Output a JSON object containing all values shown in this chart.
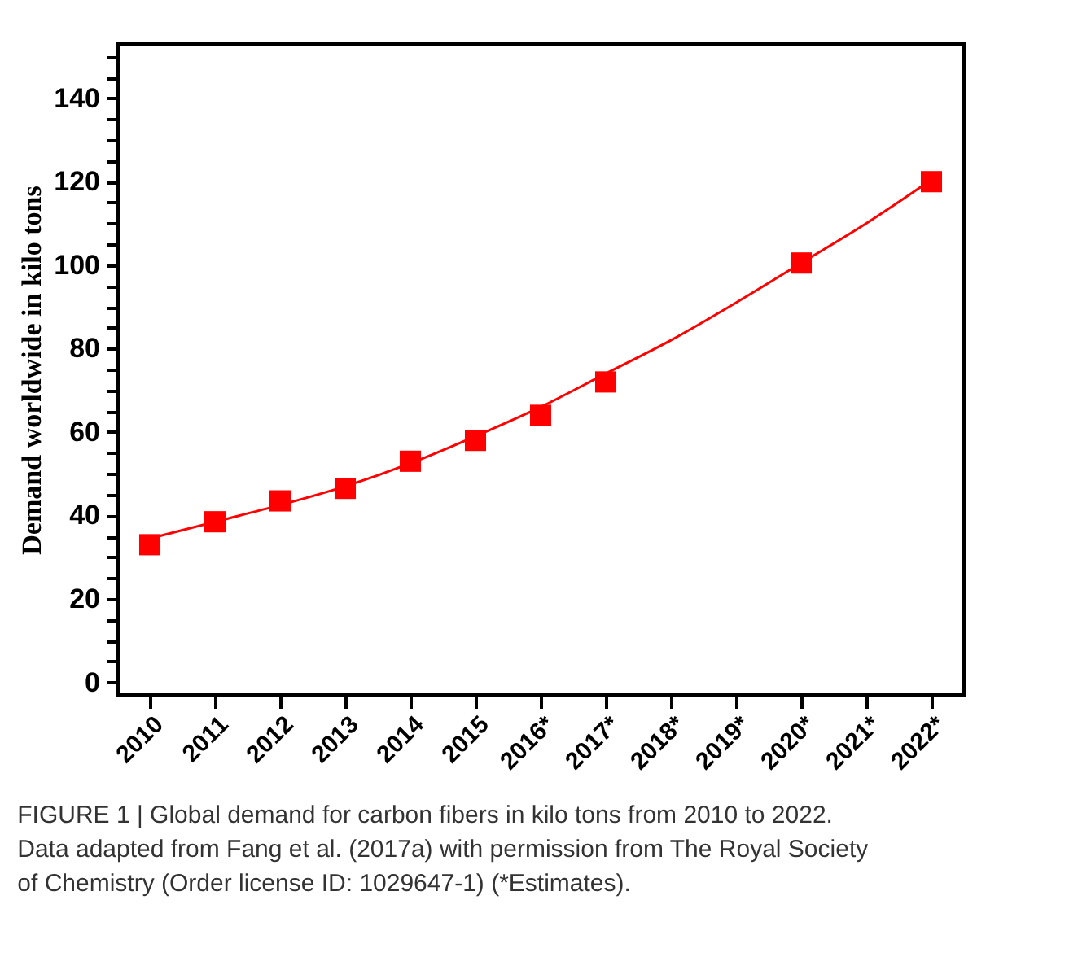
{
  "chart_data": {
    "type": "scatter",
    "ylabel": "Demand worldwide in kilo tons",
    "categories": [
      "2010",
      "2011",
      "2012",
      "2013",
      "2014",
      "2015",
      "2016*",
      "2017*",
      "2018*",
      "2019*",
      "2020*",
      "2021*",
      "2022*"
    ],
    "series": [
      {
        "color": "#ff0000",
        "marker": "square",
        "values": [
          33,
          38.5,
          43.5,
          46.5,
          53,
          58,
          64,
          72,
          null,
          null,
          100.5,
          null,
          120
        ]
      },
      {
        "type": "line",
        "color": "#ff0000",
        "marker": "none",
        "line_style": "solid",
        "values": [
          34.5,
          38.5,
          42.5,
          47,
          52.5,
          59,
          66,
          74,
          82,
          91,
          100.5,
          110,
          120.5
        ]
      }
    ],
    "ylim": [
      -3,
      153
    ],
    "yticks": [
      0,
      {
        "value": 5,
        "label": null
      },
      {
        "value": 10,
        "label": null
      },
      {
        "value": 15,
        "label": null
      },
      20,
      {
        "value": 25,
        "label": null
      },
      {
        "value": 30,
        "label": null
      },
      {
        "value": 35,
        "label": null
      },
      40,
      {
        "value": 45,
        "label": null
      },
      {
        "value": 50,
        "label": null
      },
      {
        "value": 55,
        "label": null
      },
      60,
      {
        "value": 65,
        "label": null
      },
      {
        "value": 70,
        "label": null
      },
      {
        "value": 75,
        "label": null
      },
      80,
      {
        "value": 85,
        "label": null
      },
      {
        "value": 90,
        "label": null
      },
      {
        "value": 95,
        "label": null
      },
      100,
      {
        "value": 105,
        "label": null
      },
      {
        "value": 110,
        "label": null
      },
      {
        "value": 115,
        "label": null
      },
      120,
      {
        "value": 125,
        "label": null
      },
      {
        "value": 130,
        "label": null
      },
      {
        "value": 135,
        "label": null
      },
      140,
      {
        "value": 145,
        "label": null
      },
      {
        "value": 150,
        "label": null
      }
    ],
    "grid": false,
    "annotations": [
      "FIGURE 1 | Global demand for carbon fibers in kilo tons from 2010 to 2022.",
      "Data adapted from Fang et al. (2017a) with permission from The Royal Society",
      "of Chemistry (Order license ID: 1029647-1) (*Estimates)."
    ]
  }
}
